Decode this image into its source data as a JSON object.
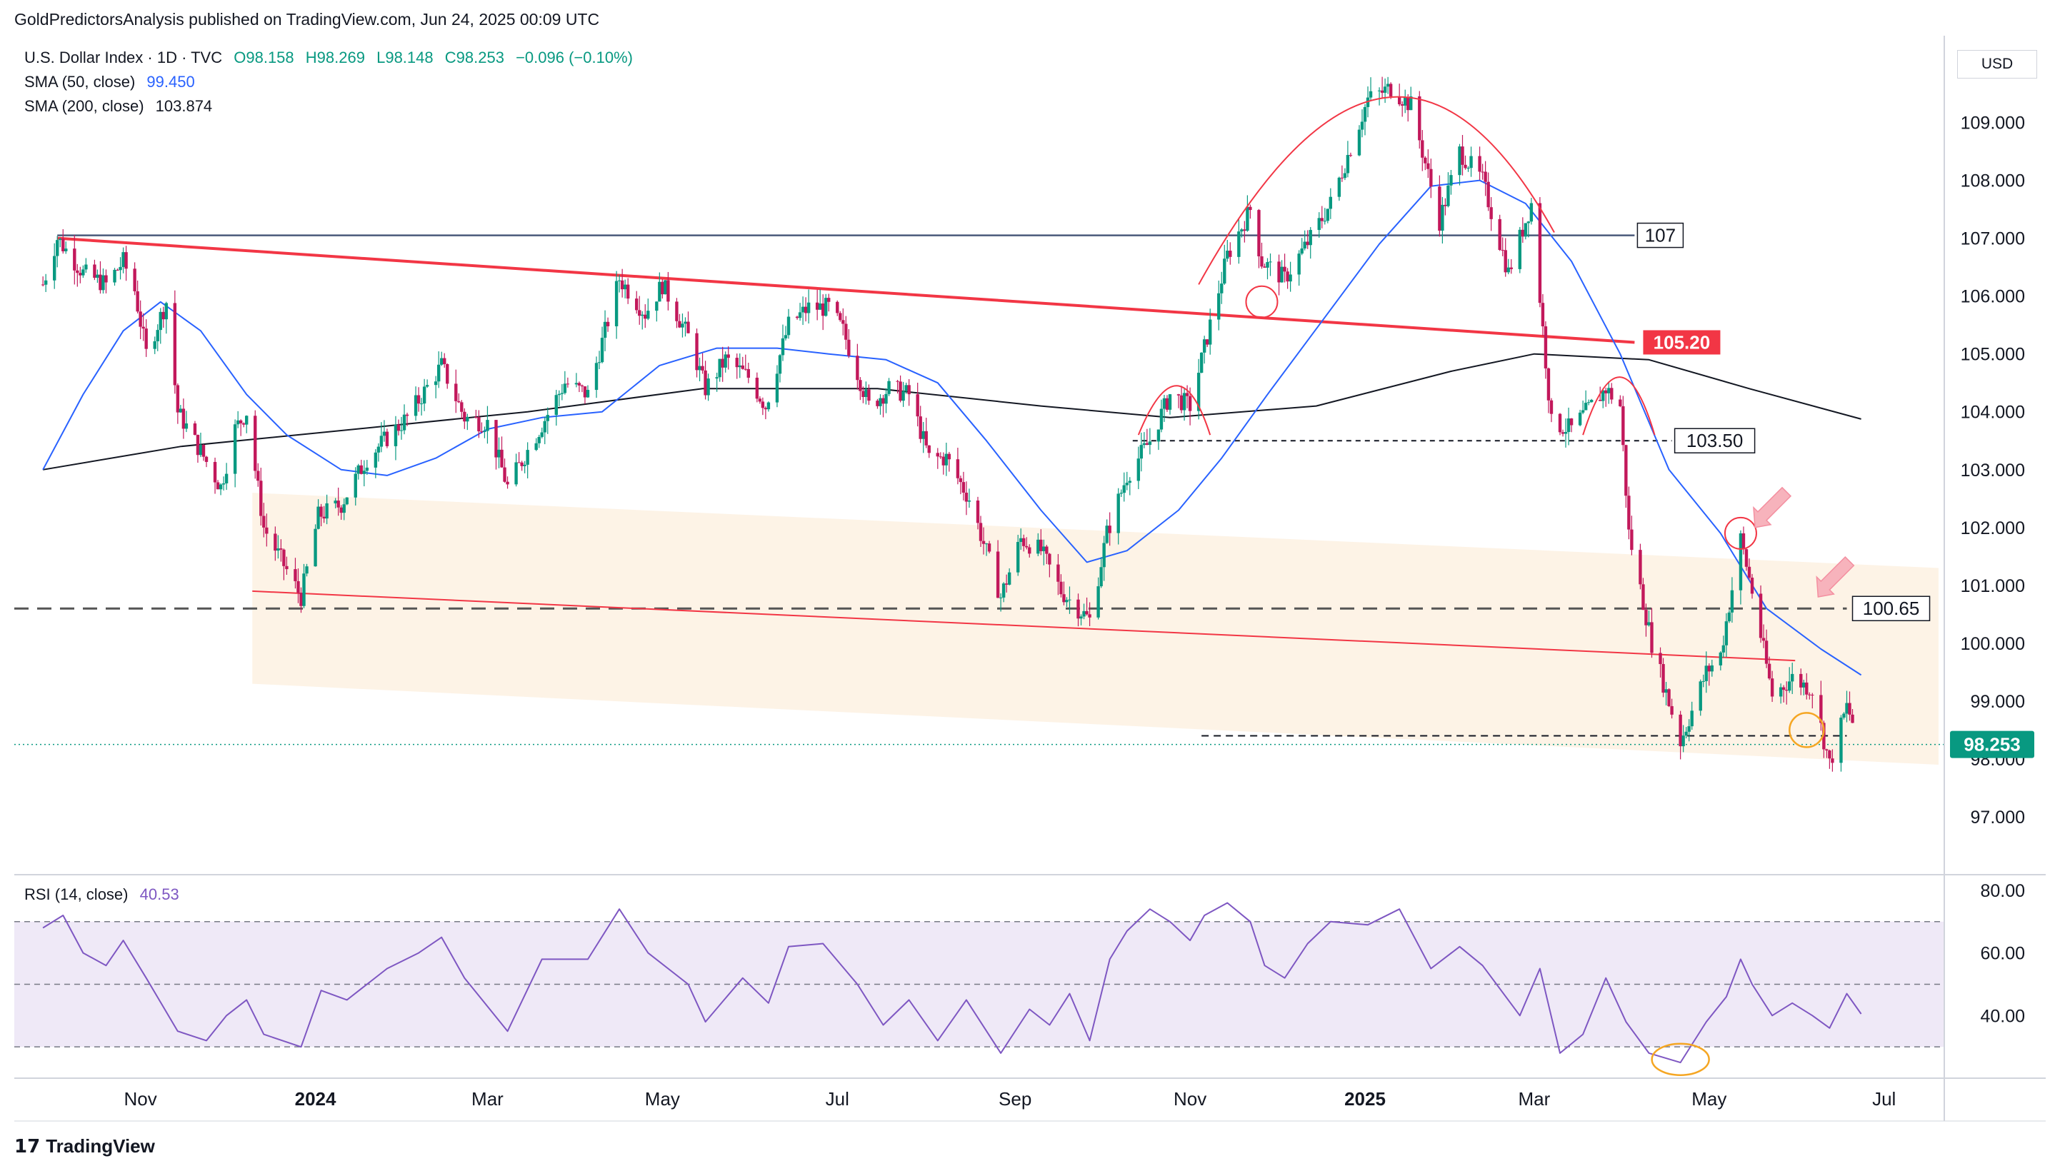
{
  "publish_line": "GoldPredictorsAnalysis published on TradingView.com, Jun 24, 2025 00:09 UTC",
  "legend": {
    "symbol": "U.S. Dollar Index · 1D · TVC",
    "open": "O98.158",
    "high": "H98.269",
    "low": "L98.148",
    "close": "C98.253",
    "change": "−0.096 (−0.10%)",
    "sma50_label": "SMA (50, close)",
    "sma50_value": "99.450",
    "sma200_label": "SMA (200, close)",
    "sma200_value": "103.874",
    "rsi_label": "RSI (14, close)",
    "rsi_value": "40.53"
  },
  "currency": "USD",
  "brand": "TradingView",
  "colors": {
    "up": "#089981",
    "down": "#c2185b",
    "sma50": "#2962ff",
    "sma200": "#131722",
    "resistance": "#f23645",
    "rsi": "#7e57c2",
    "rsi_band": "#ede7f6",
    "channel": "#fdf1e2",
    "highlight_circle": "#f5a623"
  },
  "annotations": {
    "level_107": "107",
    "level_105_20": "105.20",
    "level_103_50": "103.50",
    "level_100_65": "100.65",
    "last_price": "98.253"
  },
  "chart_data": [
    {
      "type": "line",
      "title": "U.S. Dollar Index",
      "x_labels": [
        "Nov",
        "2024",
        "Mar",
        "May",
        "Jul",
        "Sep",
        "Nov",
        "2025",
        "Mar",
        "May",
        "Jul"
      ],
      "ylim": [
        96.0,
        110.5
      ],
      "y_ticks": [
        "97.000",
        "98.000",
        "99.000",
        "100.000",
        "101.000",
        "102.000",
        "103.000",
        "104.000",
        "105.000",
        "106.000",
        "107.000",
        "108.000",
        "109.000"
      ],
      "grid": false,
      "series": [
        {
          "name": "",
          "points": [
            [
              "2023-09-28",
              106.2
            ],
            [
              "2023-10-03",
              107.0
            ],
            [
              "2023-10-12",
              106.4
            ],
            [
              "2023-10-20",
              106.2
            ],
            [
              "2023-10-26",
              106.6
            ],
            [
              "2023-10-30",
              106.1
            ],
            [
              "2023-11-03",
              105.0
            ],
            [
              "2023-11-10",
              105.9
            ],
            [
              "2023-11-14",
              104.0
            ],
            [
              "2023-11-21",
              103.4
            ],
            [
              "2023-11-29",
              102.7
            ],
            [
              "2023-12-04",
              103.7
            ],
            [
              "2023-12-08",
              104.0
            ],
            [
              "2023-12-14",
              102.0
            ],
            [
              "2023-12-27",
              100.8
            ],
            [
              "2024-01-02",
              102.2
            ],
            [
              "2024-01-10",
              102.4
            ],
            [
              "2024-01-19",
              103.2
            ],
            [
              "2024-02-02",
              103.9
            ],
            [
              "2024-02-14",
              104.8
            ],
            [
              "2024-02-22",
              103.9
            ],
            [
              "2024-03-01",
              103.8
            ],
            [
              "2024-03-08",
              102.7
            ],
            [
              "2024-03-18",
              103.6
            ],
            [
              "2024-03-28",
              104.5
            ],
            [
              "2024-04-05",
              104.3
            ],
            [
              "2024-04-16",
              106.3
            ],
            [
              "2024-04-25",
              105.7
            ],
            [
              "2024-05-01",
              106.2
            ],
            [
              "2024-05-10",
              105.3
            ],
            [
              "2024-05-16",
              104.4
            ],
            [
              "2024-05-23",
              104.9
            ],
            [
              "2024-05-31",
              104.6
            ],
            [
              "2024-06-06",
              104.1
            ],
            [
              "2024-06-14",
              105.5
            ],
            [
              "2024-06-21",
              105.8
            ],
            [
              "2024-06-28",
              105.8
            ],
            [
              "2024-07-03",
              105.4
            ],
            [
              "2024-07-12",
              104.1
            ],
            [
              "2024-07-19",
              104.4
            ],
            [
              "2024-07-26",
              104.3
            ],
            [
              "2024-08-02",
              103.2
            ],
            [
              "2024-08-08",
              103.2
            ],
            [
              "2024-08-16",
              102.5
            ],
            [
              "2024-08-27",
              100.8
            ],
            [
              "2024-09-03",
              101.8
            ],
            [
              "2024-09-10",
              101.6
            ],
            [
              "2024-09-17",
              100.9
            ],
            [
              "2024-09-27",
              100.4
            ],
            [
              "2024-10-03",
              101.9
            ],
            [
              "2024-10-10",
              102.9
            ],
            [
              "2024-10-18",
              103.5
            ],
            [
              "2024-10-25",
              104.3
            ],
            [
              "2024-11-01",
              104.1
            ],
            [
              "2024-11-06",
              105.1
            ],
            [
              "2024-11-14",
              106.7
            ],
            [
              "2024-11-22",
              107.5
            ],
            [
              "2024-11-26",
              106.6
            ],
            [
              "2024-12-04",
              106.3
            ],
            [
              "2024-12-13",
              107.0
            ],
            [
              "2024-12-20",
              107.6
            ],
            [
              "2025-01-02",
              109.4
            ],
            [
              "2025-01-10",
              109.6
            ],
            [
              "2025-01-17",
              109.3
            ],
            [
              "2025-01-27",
              107.3
            ],
            [
              "2025-02-03",
              108.5
            ],
            [
              "2025-02-11",
              108.0
            ],
            [
              "2025-02-20",
              106.4
            ],
            [
              "2025-02-28",
              107.6
            ],
            [
              "2025-03-07",
              103.8
            ],
            [
              "2025-03-14",
              103.7
            ],
            [
              "2025-03-26",
              104.4
            ],
            [
              "2025-03-31",
              104.1
            ],
            [
              "2025-04-03",
              101.9
            ],
            [
              "2025-04-11",
              100.0
            ],
            [
              "2025-04-21",
              98.3
            ],
            [
              "2025-04-30",
              99.5
            ],
            [
              "2025-05-05",
              99.8
            ],
            [
              "2025-05-12",
              101.8
            ],
            [
              "2025-05-16",
              100.9
            ],
            [
              "2025-05-23",
              99.1
            ],
            [
              "2025-05-30",
              99.4
            ],
            [
              "2025-06-06",
              99.2
            ],
            [
              "2025-06-12",
              97.9
            ],
            [
              "2025-06-18",
              98.9
            ],
            [
              "2025-06-23",
              98.25
            ]
          ]
        },
        {
          "name": "SMA (50, close)",
          "points": [
            [
              "2023-09-28",
              103.0
            ],
            [
              "2023-10-12",
              104.3
            ],
            [
              "2023-10-26",
              105.4
            ],
            [
              "2023-11-08",
              105.9
            ],
            [
              "2023-11-22",
              105.4
            ],
            [
              "2023-12-08",
              104.3
            ],
            [
              "2023-12-22",
              103.6
            ],
            [
              "2024-01-10",
              103.0
            ],
            [
              "2024-01-26",
              102.9
            ],
            [
              "2024-02-12",
              103.2
            ],
            [
              "2024-03-01",
              103.7
            ],
            [
              "2024-03-20",
              103.9
            ],
            [
              "2024-04-10",
              104.0
            ],
            [
              "2024-04-30",
              104.8
            ],
            [
              "2024-05-20",
              105.1
            ],
            [
              "2024-06-10",
              105.1
            ],
            [
              "2024-06-28",
              105.0
            ],
            [
              "2024-07-18",
              104.9
            ],
            [
              "2024-08-05",
              104.5
            ],
            [
              "2024-08-22",
              103.5
            ],
            [
              "2024-09-10",
              102.3
            ],
            [
              "2024-09-26",
              101.4
            ],
            [
              "2024-10-10",
              101.6
            ],
            [
              "2024-10-28",
              102.3
            ],
            [
              "2024-11-12",
              103.2
            ],
            [
              "2024-11-28",
              104.3
            ],
            [
              "2024-12-16",
              105.5
            ],
            [
              "2025-01-06",
              106.9
            ],
            [
              "2025-01-24",
              107.9
            ],
            [
              "2025-02-10",
              108.0
            ],
            [
              "2025-02-26",
              107.6
            ],
            [
              "2025-03-14",
              106.6
            ],
            [
              "2025-03-31",
              105.0
            ],
            [
              "2025-04-17",
              103.0
            ],
            [
              "2025-05-05",
              101.9
            ],
            [
              "2025-05-21",
              100.6
            ],
            [
              "2025-06-09",
              99.9
            ],
            [
              "2025-06-23",
              99.45
            ]
          ]
        },
        {
          "name": "SMA (200, close)",
          "points": [
            [
              "2023-09-28",
              103.0
            ],
            [
              "2023-11-15",
              103.4
            ],
            [
              "2024-01-15",
              103.7
            ],
            [
              "2024-03-15",
              104.0
            ],
            [
              "2024-05-15",
              104.4
            ],
            [
              "2024-07-15",
              104.4
            ],
            [
              "2024-09-10",
              104.1
            ],
            [
              "2024-10-25",
              103.9
            ],
            [
              "2024-12-15",
              104.1
            ],
            [
              "2025-01-31",
              104.7
            ],
            [
              "2025-03-01",
              105.0
            ],
            [
              "2025-04-10",
              104.9
            ],
            [
              "2025-05-15",
              104.4
            ],
            [
              "2025-06-23",
              103.874
            ]
          ]
        }
      ]
    },
    {
      "type": "line",
      "title": "RSI (14, close)",
      "ylim": [
        20,
        85
      ],
      "y_ticks": [
        "40.00",
        "60.00",
        "80.00"
      ],
      "series": [
        {
          "name": "RSI (14, close)",
          "points": [
            [
              "2023-09-28",
              68
            ],
            [
              "2023-10-05",
              72
            ],
            [
              "2023-10-12",
              60
            ],
            [
              "2023-10-20",
              56
            ],
            [
              "2023-10-26",
              64
            ],
            [
              "2023-11-03",
              52
            ],
            [
              "2023-11-14",
              35
            ],
            [
              "2023-11-24",
              32
            ],
            [
              "2023-12-01",
              40
            ],
            [
              "2023-12-08",
              45
            ],
            [
              "2023-12-14",
              34
            ],
            [
              "2023-12-27",
              30
            ],
            [
              "2024-01-03",
              48
            ],
            [
              "2024-01-12",
              45
            ],
            [
              "2024-01-26",
              55
            ],
            [
              "2024-02-06",
              60
            ],
            [
              "2024-02-14",
              65
            ],
            [
              "2024-02-22",
              52
            ],
            [
              "2024-03-08",
              35
            ],
            [
              "2024-03-20",
              58
            ],
            [
              "2024-04-05",
              58
            ],
            [
              "2024-04-16",
              74
            ],
            [
              "2024-04-26",
              60
            ],
            [
              "2024-05-10",
              50
            ],
            [
              "2024-05-16",
              38
            ],
            [
              "2024-05-29",
              52
            ],
            [
              "2024-06-07",
              44
            ],
            [
              "2024-06-14",
              62
            ],
            [
              "2024-06-26",
              63
            ],
            [
              "2024-07-08",
              50
            ],
            [
              "2024-07-17",
              37
            ],
            [
              "2024-07-26",
              45
            ],
            [
              "2024-08-05",
              32
            ],
            [
              "2024-08-15",
              45
            ],
            [
              "2024-08-27",
              28
            ],
            [
              "2024-09-06",
              42
            ],
            [
              "2024-09-13",
              37
            ],
            [
              "2024-09-20",
              47
            ],
            [
              "2024-09-27",
              32
            ],
            [
              "2024-10-04",
              58
            ],
            [
              "2024-10-10",
              67
            ],
            [
              "2024-10-18",
              74
            ],
            [
              "2024-10-25",
              70
            ],
            [
              "2024-11-01",
              64
            ],
            [
              "2024-11-06",
              72
            ],
            [
              "2024-11-14",
              76
            ],
            [
              "2024-11-22",
              70
            ],
            [
              "2024-11-27",
              56
            ],
            [
              "2024-12-04",
              52
            ],
            [
              "2024-12-12",
              63
            ],
            [
              "2024-12-20",
              70
            ],
            [
              "2025-01-02",
              69
            ],
            [
              "2025-01-13",
              74
            ],
            [
              "2025-01-24",
              55
            ],
            [
              "2025-02-03",
              62
            ],
            [
              "2025-02-11",
              56
            ],
            [
              "2025-02-24",
              40
            ],
            [
              "2025-03-03",
              55
            ],
            [
              "2025-03-10",
              28
            ],
            [
              "2025-03-18",
              34
            ],
            [
              "2025-03-26",
              52
            ],
            [
              "2025-04-02",
              38
            ],
            [
              "2025-04-10",
              28
            ],
            [
              "2025-04-21",
              25
            ],
            [
              "2025-04-30",
              38
            ],
            [
              "2025-05-07",
              46
            ],
            [
              "2025-05-12",
              58
            ],
            [
              "2025-05-16",
              50
            ],
            [
              "2025-05-23",
              40
            ],
            [
              "2025-05-30",
              44
            ],
            [
              "2025-06-06",
              40
            ],
            [
              "2025-06-12",
              36
            ],
            [
              "2025-06-18",
              47
            ],
            [
              "2025-06-23",
              40.53
            ]
          ]
        }
      ]
    }
  ]
}
